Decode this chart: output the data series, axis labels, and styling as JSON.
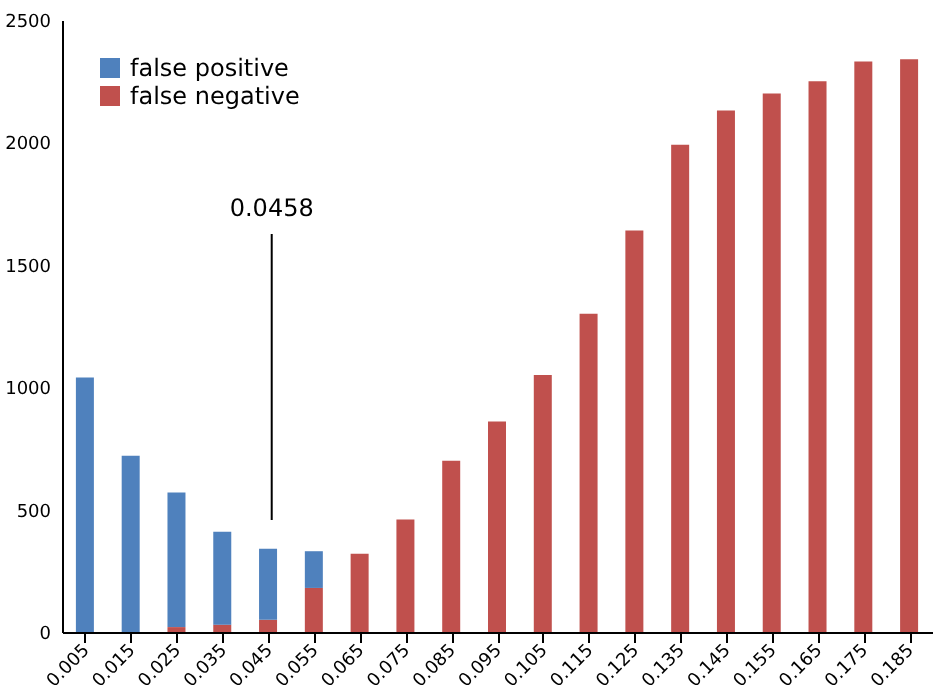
{
  "chart_data": {
    "type": "bar",
    "stacked": true,
    "x": [
      0.005,
      0.015,
      0.025,
      0.035,
      0.045,
      0.055,
      0.065,
      0.075,
      0.085,
      0.095,
      0.105,
      0.115,
      0.125,
      0.135,
      0.145,
      0.155,
      0.165,
      0.175,
      0.185
    ],
    "series": [
      {
        "name": "false negative",
        "color": "#c0504d",
        "values": [
          null,
          null,
          20,
          30,
          50,
          180,
          320,
          460,
          700,
          860,
          1050,
          1300,
          1640,
          1990,
          2130,
          2200,
          2250,
          2330,
          2340
        ]
      },
      {
        "name": "false positive",
        "color": "#4f81bd",
        "values": [
          1040,
          720,
          550,
          380,
          290,
          150,
          null,
          null,
          null,
          null,
          null,
          null,
          null,
          null,
          null,
          null,
          null,
          null,
          null
        ]
      }
    ],
    "xlim": [
      0,
      0.19
    ],
    "xticks": [
      0.005,
      0.015,
      0.025,
      0.035,
      0.045,
      0.055,
      0.065,
      0.075,
      0.085,
      0.095,
      0.105,
      0.115,
      0.125,
      0.135,
      0.145,
      0.155,
      0.165,
      0.175,
      0.185
    ],
    "ylim": [
      0,
      2500
    ],
    "yticks": [
      0,
      500,
      1000,
      1500,
      2000,
      2500
    ],
    "ref_lines": [
      {
        "axis": "x",
        "value": 0.0458,
        "label": "0.0458",
        "color": "#000000"
      }
    ],
    "legend": "top left",
    "grid": false
  }
}
